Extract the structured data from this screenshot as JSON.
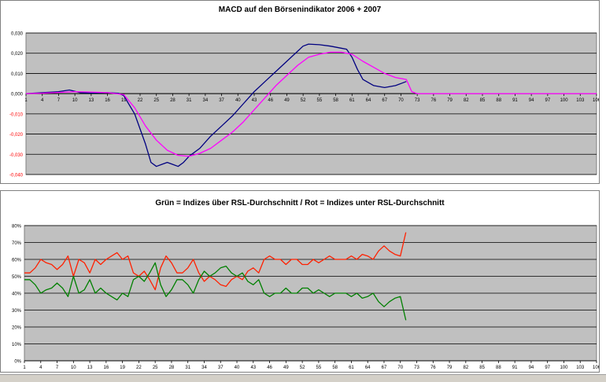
{
  "chart_data": [
    {
      "type": "line",
      "title": "MACD auf den Börsenindikator 2006 + 2007",
      "xlabel": "",
      "ylabel": "",
      "ylim": [
        -0.04,
        0.03
      ],
      "grid": true,
      "plot_background": "#c0c0c0",
      "x_ticks": [
        "1",
        "4",
        "7",
        "10",
        "13",
        "16",
        "19",
        "22",
        "25",
        "28",
        "31",
        "34",
        "37",
        "40",
        "43",
        "46",
        "49",
        "52",
        "55",
        "58",
        "61",
        "64",
        "67",
        "70",
        "73",
        "76",
        "79",
        "82",
        "85",
        "88",
        "91",
        "94",
        "97",
        "100",
        "103",
        "106"
      ],
      "y_ticks": [
        {
          "value": 0.03,
          "label": "0,030",
          "color": "#000000"
        },
        {
          "value": 0.02,
          "label": "0,020",
          "color": "#000000"
        },
        {
          "value": 0.01,
          "label": "0,010",
          "color": "#000000"
        },
        {
          "value": 0.0,
          "label": "0,000",
          "color": "#000000"
        },
        {
          "value": -0.01,
          "label": "-0,010",
          "color": "#ff0000"
        },
        {
          "value": -0.02,
          "label": "-0,020",
          "color": "#ff0000"
        },
        {
          "value": -0.03,
          "label": "-0,030",
          "color": "#ff0000"
        },
        {
          "value": -0.04,
          "label": "-0,040",
          "color": "#ff0000"
        }
      ],
      "series": [
        {
          "color": "#000080",
          "points": [
            [
              1,
              0
            ],
            [
              4,
              0.0005
            ],
            [
              7,
              0.001
            ],
            [
              9,
              0.0018
            ],
            [
              11,
              0.0005
            ],
            [
              13,
              0.0003
            ],
            [
              16,
              0.0005
            ],
            [
              18,
              0.0002
            ],
            [
              19,
              -0.001
            ],
            [
              21,
              -0.01
            ],
            [
              23,
              -0.025
            ],
            [
              24,
              -0.034
            ],
            [
              25,
              -0.036
            ],
            [
              26,
              -0.035
            ],
            [
              27,
              -0.034
            ],
            [
              28,
              -0.035
            ],
            [
              29,
              -0.036
            ],
            [
              30,
              -0.034
            ],
            [
              31,
              -0.031
            ],
            [
              33,
              -0.027
            ],
            [
              35,
              -0.021
            ],
            [
              37,
              -0.016
            ],
            [
              39,
              -0.011
            ],
            [
              41,
              -0.005
            ],
            [
              43,
              0.001
            ],
            [
              45,
              0.006
            ],
            [
              47,
              0.011
            ],
            [
              49,
              0.016
            ],
            [
              51,
              0.021
            ],
            [
              52,
              0.0235
            ],
            [
              53,
              0.0245
            ],
            [
              55,
              0.0242
            ],
            [
              57,
              0.0235
            ],
            [
              59,
              0.0225
            ],
            [
              60,
              0.022
            ],
            [
              61,
              0.018
            ],
            [
              62,
              0.012
            ],
            [
              63,
              0.007
            ],
            [
              65,
              0.004
            ],
            [
              67,
              0.003
            ],
            [
              69,
              0.004
            ],
            [
              70,
              0.005
            ],
            [
              71,
              0.006
            ]
          ]
        },
        {
          "color": "#ff00ff",
          "points": [
            [
              1,
              0
            ],
            [
              4,
              0.0002
            ],
            [
              7,
              0.0006
            ],
            [
              10,
              0.001
            ],
            [
              13,
              0.0008
            ],
            [
              16,
              0.0005
            ],
            [
              19,
              -0.0005
            ],
            [
              21,
              -0.007
            ],
            [
              23,
              -0.016
            ],
            [
              25,
              -0.023
            ],
            [
              27,
              -0.028
            ],
            [
              29,
              -0.0305
            ],
            [
              31,
              -0.031
            ],
            [
              33,
              -0.0295
            ],
            [
              35,
              -0.027
            ],
            [
              37,
              -0.023
            ],
            [
              39,
              -0.019
            ],
            [
              41,
              -0.014
            ],
            [
              43,
              -0.008
            ],
            [
              45,
              -0.002
            ],
            [
              47,
              0.004
            ],
            [
              49,
              0.009
            ],
            [
              51,
              0.014
            ],
            [
              53,
              0.018
            ],
            [
              55,
              0.0195
            ],
            [
              57,
              0.0205
            ],
            [
              59,
              0.0205
            ],
            [
              61,
              0.0195
            ],
            [
              63,
              0.016
            ],
            [
              65,
              0.013
            ],
            [
              67,
              0.01
            ],
            [
              69,
              0.008
            ],
            [
              71,
              0.007
            ],
            [
              72,
              0.001
            ],
            [
              73,
              0
            ],
            [
              106,
              0
            ]
          ]
        }
      ]
    },
    {
      "type": "line",
      "title": "Grün = Indizes über RSL-Durchschnitt / Rot = Indizes unter RSL-Durchschnitt",
      "xlabel": "",
      "ylabel": "",
      "ylim": [
        0,
        0.8
      ],
      "grid": true,
      "plot_background": "#c0c0c0",
      "x_ticks": [
        "1",
        "4",
        "7",
        "10",
        "13",
        "16",
        "19",
        "22",
        "25",
        "28",
        "31",
        "34",
        "37",
        "40",
        "43",
        "46",
        "49",
        "52",
        "55",
        "58",
        "61",
        "64",
        "67",
        "70",
        "73",
        "76",
        "79",
        "82",
        "85",
        "88",
        "91",
        "94",
        "97",
        "100",
        "103",
        "106"
      ],
      "y_ticks": [
        {
          "value": 0.8,
          "label": "80%"
        },
        {
          "value": 0.7,
          "label": "70%"
        },
        {
          "value": 0.6,
          "label": "60%"
        },
        {
          "value": 0.5,
          "label": "50%"
        },
        {
          "value": 0.4,
          "label": "40%"
        },
        {
          "value": 0.3,
          "label": "30%"
        },
        {
          "value": 0.2,
          "label": "20%"
        },
        {
          "value": 0.1,
          "label": "10%"
        },
        {
          "value": 0.0,
          "label": "0%"
        }
      ],
      "series": [
        {
          "color": "#ff2000",
          "points": [
            [
              1,
              0.52
            ],
            [
              2,
              0.52
            ],
            [
              3,
              0.55
            ],
            [
              4,
              0.6
            ],
            [
              5,
              0.58
            ],
            [
              6,
              0.57
            ],
            [
              7,
              0.54
            ],
            [
              8,
              0.57
            ],
            [
              9,
              0.62
            ],
            [
              10,
              0.5
            ],
            [
              11,
              0.6
            ],
            [
              12,
              0.58
            ],
            [
              13,
              0.52
            ],
            [
              14,
              0.6
            ],
            [
              15,
              0.57
            ],
            [
              16,
              0.6
            ],
            [
              17,
              0.62
            ],
            [
              18,
              0.64
            ],
            [
              19,
              0.6
            ],
            [
              20,
              0.62
            ],
            [
              21,
              0.52
            ],
            [
              22,
              0.5
            ],
            [
              23,
              0.53
            ],
            [
              24,
              0.48
            ],
            [
              25,
              0.42
            ],
            [
              26,
              0.55
            ],
            [
              27,
              0.62
            ],
            [
              28,
              0.58
            ],
            [
              29,
              0.52
            ],
            [
              30,
              0.52
            ],
            [
              31,
              0.55
            ],
            [
              32,
              0.6
            ],
            [
              33,
              0.52
            ],
            [
              34,
              0.47
            ],
            [
              35,
              0.5
            ],
            [
              36,
              0.48
            ],
            [
              37,
              0.45
            ],
            [
              38,
              0.44
            ],
            [
              39,
              0.48
            ],
            [
              40,
              0.5
            ],
            [
              41,
              0.48
            ],
            [
              42,
              0.53
            ],
            [
              43,
              0.55
            ],
            [
              44,
              0.52
            ],
            [
              45,
              0.6
            ],
            [
              46,
              0.62
            ],
            [
              47,
              0.6
            ],
            [
              48,
              0.6
            ],
            [
              49,
              0.57
            ],
            [
              50,
              0.6
            ],
            [
              51,
              0.6
            ],
            [
              52,
              0.57
            ],
            [
              53,
              0.57
            ],
            [
              54,
              0.6
            ],
            [
              55,
              0.58
            ],
            [
              56,
              0.6
            ],
            [
              57,
              0.62
            ],
            [
              58,
              0.6
            ],
            [
              59,
              0.6
            ],
            [
              60,
              0.6
            ],
            [
              61,
              0.62
            ],
            [
              62,
              0.6
            ],
            [
              63,
              0.63
            ],
            [
              64,
              0.62
            ],
            [
              65,
              0.6
            ],
            [
              66,
              0.65
            ],
            [
              67,
              0.68
            ],
            [
              68,
              0.65
            ],
            [
              69,
              0.63
            ],
            [
              70,
              0.62
            ],
            [
              71,
              0.76
            ]
          ]
        },
        {
          "color": "#008000",
          "points": [
            [
              1,
              0.48
            ],
            [
              2,
              0.48
            ],
            [
              3,
              0.45
            ],
            [
              4,
              0.4
            ],
            [
              5,
              0.42
            ],
            [
              6,
              0.43
            ],
            [
              7,
              0.46
            ],
            [
              8,
              0.43
            ],
            [
              9,
              0.38
            ],
            [
              10,
              0.5
            ],
            [
              11,
              0.4
            ],
            [
              12,
              0.42
            ],
            [
              13,
              0.48
            ],
            [
              14,
              0.4
            ],
            [
              15,
              0.43
            ],
            [
              16,
              0.4
            ],
            [
              17,
              0.38
            ],
            [
              18,
              0.36
            ],
            [
              19,
              0.4
            ],
            [
              20,
              0.38
            ],
            [
              21,
              0.48
            ],
            [
              22,
              0.5
            ],
            [
              23,
              0.47
            ],
            [
              24,
              0.52
            ],
            [
              25,
              0.58
            ],
            [
              26,
              0.45
            ],
            [
              27,
              0.38
            ],
            [
              28,
              0.42
            ],
            [
              29,
              0.48
            ],
            [
              30,
              0.48
            ],
            [
              31,
              0.45
            ],
            [
              32,
              0.4
            ],
            [
              33,
              0.48
            ],
            [
              34,
              0.53
            ],
            [
              35,
              0.5
            ],
            [
              36,
              0.52
            ],
            [
              37,
              0.55
            ],
            [
              38,
              0.56
            ],
            [
              39,
              0.52
            ],
            [
              40,
              0.5
            ],
            [
              41,
              0.52
            ],
            [
              42,
              0.47
            ],
            [
              43,
              0.45
            ],
            [
              44,
              0.48
            ],
            [
              45,
              0.4
            ],
            [
              46,
              0.38
            ],
            [
              47,
              0.4
            ],
            [
              48,
              0.4
            ],
            [
              49,
              0.43
            ],
            [
              50,
              0.4
            ],
            [
              51,
              0.4
            ],
            [
              52,
              0.43
            ],
            [
              53,
              0.43
            ],
            [
              54,
              0.4
            ],
            [
              55,
              0.42
            ],
            [
              56,
              0.4
            ],
            [
              57,
              0.38
            ],
            [
              58,
              0.4
            ],
            [
              59,
              0.4
            ],
            [
              60,
              0.4
            ],
            [
              61,
              0.38
            ],
            [
              62,
              0.4
            ],
            [
              63,
              0.37
            ],
            [
              64,
              0.38
            ],
            [
              65,
              0.4
            ],
            [
              66,
              0.35
            ],
            [
              67,
              0.32
            ],
            [
              68,
              0.35
            ],
            [
              69,
              0.37
            ],
            [
              70,
              0.38
            ],
            [
              71,
              0.24
            ]
          ]
        }
      ]
    }
  ]
}
